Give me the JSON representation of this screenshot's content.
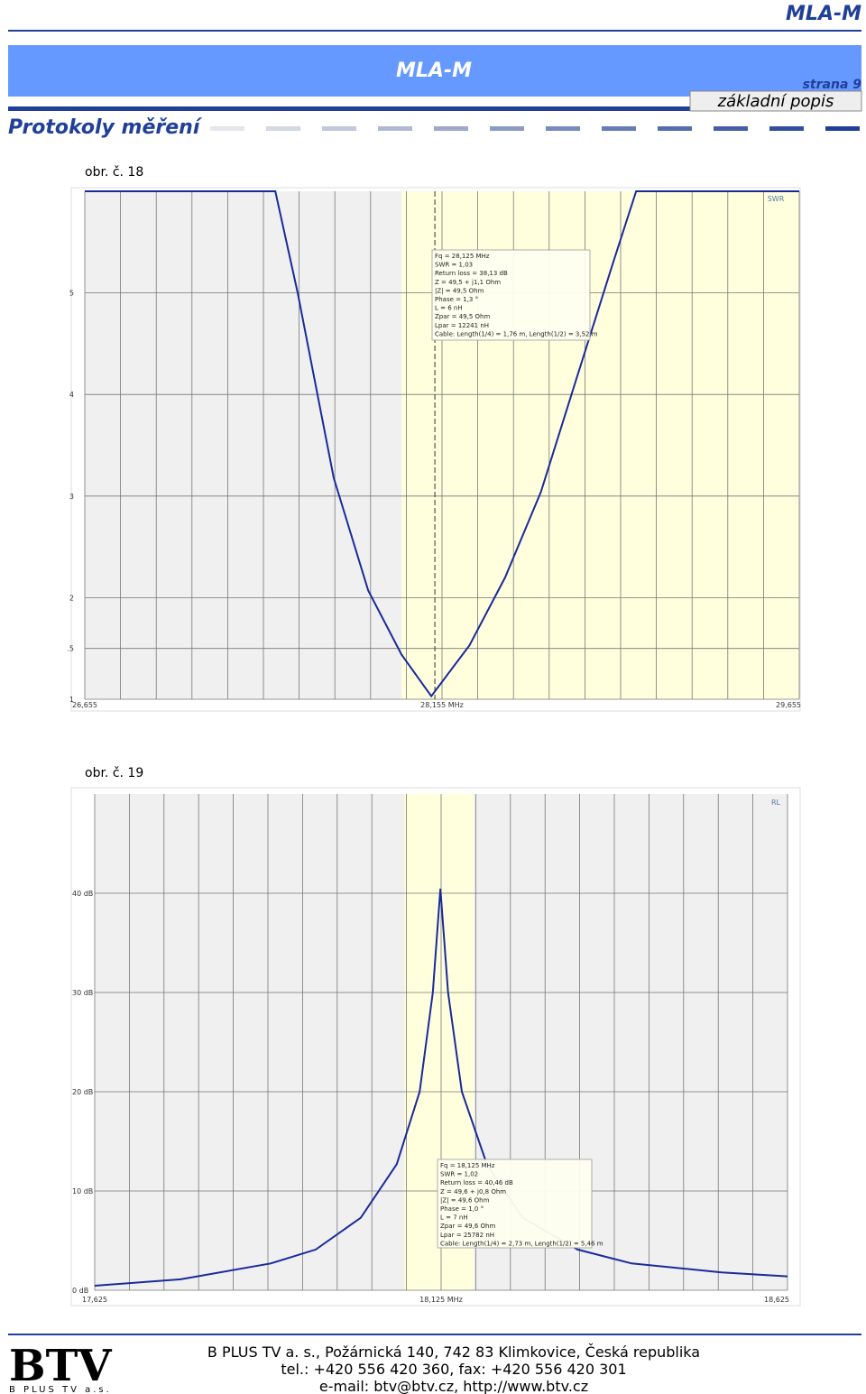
{
  "header": {
    "brand": "MLA-M",
    "banner_title": "MLA-M",
    "page": "strana 9",
    "section": "základní popis",
    "heading": "Protokoly měření"
  },
  "chart_data": [
    {
      "type": "line",
      "caption": "obr. č. 18",
      "label": "SWR",
      "x": [
        26.655,
        27.455,
        27.549,
        27.7,
        27.845,
        27.985,
        28.11,
        28.27,
        28.42,
        28.57,
        28.72,
        28.875,
        28.97,
        29.655
      ],
      "series": [
        {
          "color": "#1a2a9a",
          "values": [
            6,
            6,
            5,
            3.18,
            2.07,
            1.44,
            1.03,
            1.53,
            2.2,
            3.04,
            4.16,
            5.31,
            6,
            6
          ]
        }
      ],
      "xlim": [
        26.655,
        29.655
      ],
      "ylim": [
        1,
        6
      ],
      "xticks": [
        {
          "value": 26.655,
          "label": "26,655"
        },
        {
          "value": 28.155,
          "label": "28,155 MHz"
        },
        {
          "value": 29.655,
          "label": "29,655"
        }
      ],
      "xgrid": [
        26.655,
        26.805,
        26.955,
        27.105,
        27.255,
        27.405,
        27.555,
        27.705,
        27.855,
        28.005,
        28.155,
        28.305,
        28.455,
        28.605,
        28.755,
        28.905,
        29.055,
        29.205,
        29.355,
        29.505,
        29.655
      ],
      "yticks": [
        1,
        {
          "value": 1.5,
          "label": ".5"
        },
        2,
        3,
        4,
        5
      ],
      "highlight": [
        27.985,
        29.655
      ],
      "marker": 28.125,
      "annotation": [
        "Fq = 28,125 MHz",
        "SWR = 1,03",
        "Return loss = 38,13 dB",
        "Z = 49,5 + j1,1 Ohm",
        "|Z| = 49,5 Ohm",
        "Phase = 1,3 °",
        "L = 6 nH",
        "Zpar = 49,5 Ohm",
        "Lpar = 12241 nH",
        "Cable: Length(1/4) = 1,76 m, Length(1/2) = 3,52 m"
      ]
    },
    {
      "type": "line",
      "caption": "obr. č. 19",
      "label": "RL",
      "x": [
        17.625,
        17.749,
        17.879,
        17.944,
        18.009,
        18.061,
        18.094,
        18.113,
        18.124,
        18.135,
        18.155,
        18.191,
        18.243,
        18.322,
        18.4,
        18.53,
        18.625
      ],
      "series": [
        {
          "color": "#1a2a9a",
          "values": [
            0.45,
            1.1,
            2.7,
            4.1,
            7.3,
            12.7,
            20,
            30,
            40.46,
            30,
            20,
            12.7,
            7.3,
            4.1,
            2.7,
            1.8,
            1.4
          ]
        }
      ],
      "xlim": [
        17.625,
        18.625
      ],
      "ylim": [
        0,
        50
      ],
      "xticks": [
        {
          "value": 17.625,
          "label": "17,625"
        },
        {
          "value": 18.125,
          "label": "18,125 MHz"
        },
        {
          "value": 18.625,
          "label": "18,625"
        }
      ],
      "xgrid": [
        17.625,
        17.675,
        17.725,
        17.775,
        17.825,
        17.875,
        17.925,
        17.975,
        18.025,
        18.075,
        18.125,
        18.175,
        18.225,
        18.275,
        18.325,
        18.375,
        18.425,
        18.475,
        18.525,
        18.575,
        18.625
      ],
      "yticks": [
        {
          "value": 0,
          "label": "0 dB"
        },
        {
          "value": 10,
          "label": "10 dB"
        },
        {
          "value": 20,
          "label": "20 dB"
        },
        {
          "value": 30,
          "label": "30 dB"
        },
        {
          "value": 40,
          "label": "40 dB"
        }
      ],
      "highlight": [
        18.072,
        18.172
      ],
      "annotation": [
        "Fq = 18,125 MHz",
        "SWR = 1,02",
        "Return loss = 40,46 dB",
        "Z = 49,6 + j0,8 Ohm",
        "|Z| = 49,6 Ohm",
        "Phase = 1,0 °",
        "L = 7 nH",
        "Zpar = 49,6 Ohm",
        "Lpar = 25782 nH",
        "Cable: Length(1/4) = 2,73 m, Length(1/2) = 5,46 m"
      ]
    }
  ],
  "footer": {
    "logo": "BTV",
    "logo_sub": "B PLUS TV a.s.",
    "lines": [
      "B PLUS TV a. s., Požárnická 140, 742 83 Klimkovice, Česká republika",
      "tel.: +420 556 420 360,  fax: +420 556 420 301",
      "e-mail: btv@btv.cz,  http://www.btv.cz"
    ]
  }
}
